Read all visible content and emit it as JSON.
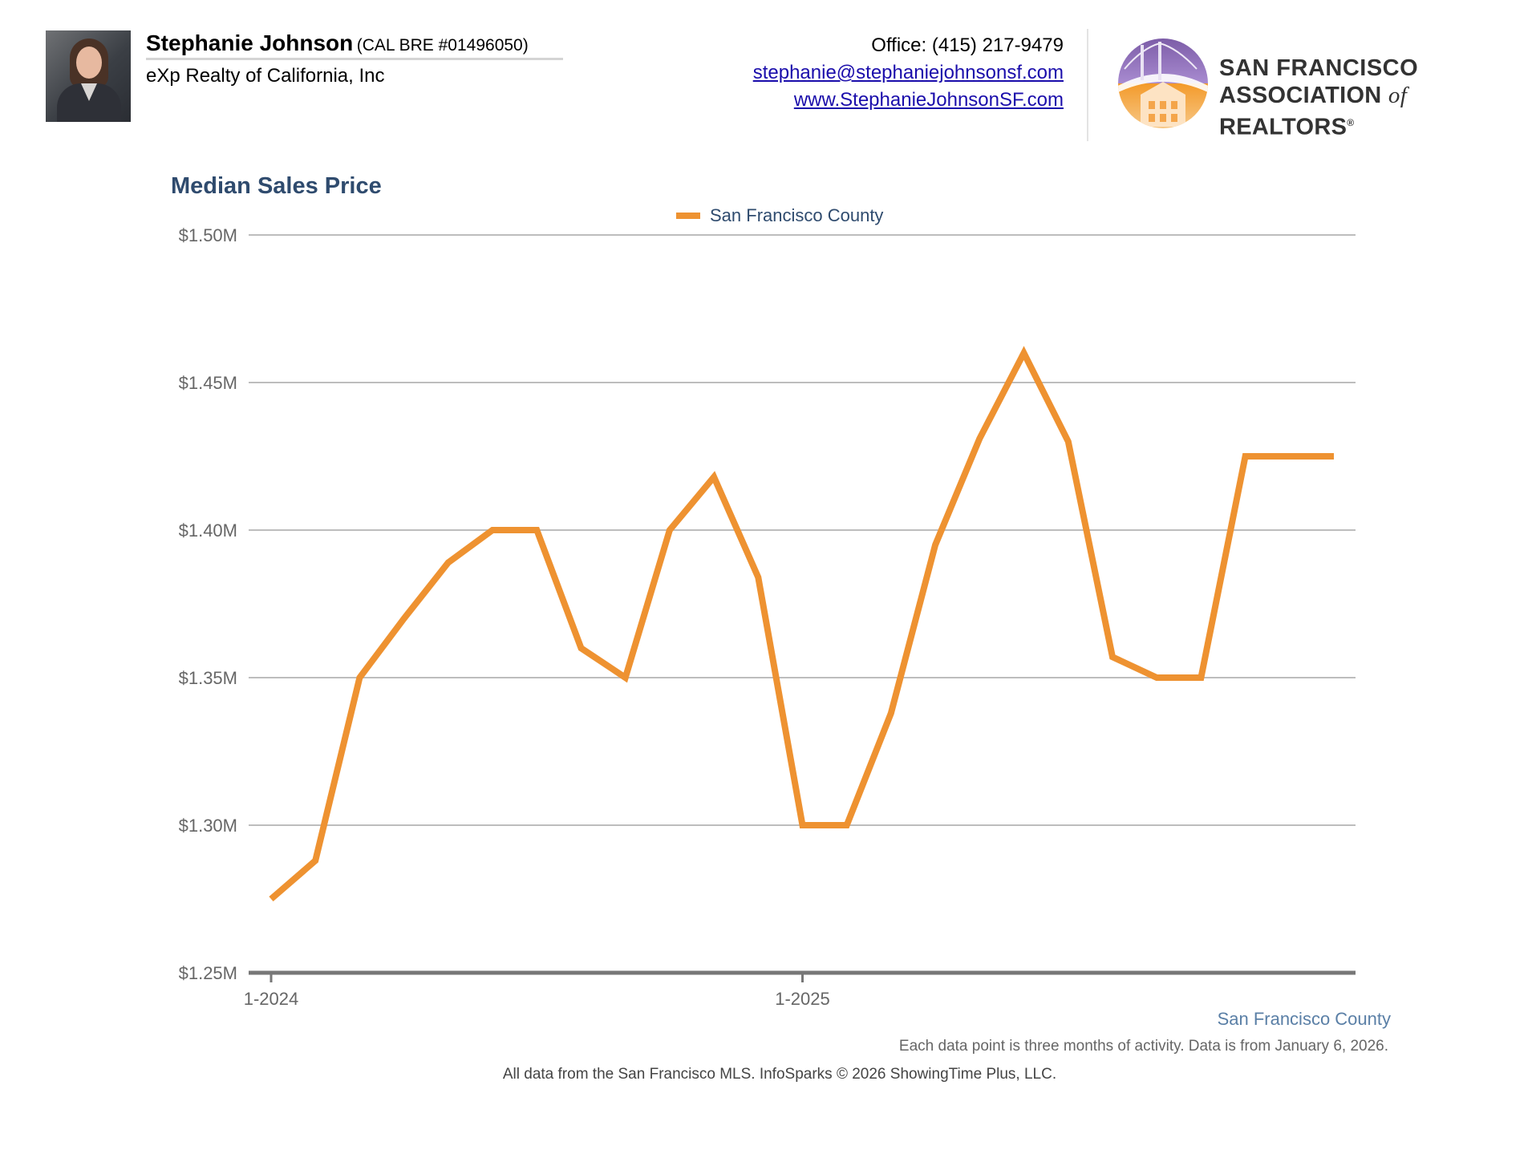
{
  "agent": {
    "name": "Stephanie Johnson",
    "license": "(CAL BRE #01496050)",
    "company": "eXp Realty of California, Inc"
  },
  "contact": {
    "office": "Office: (415) 217-9479",
    "email": "stephanie@stephaniejohnsonsf.com",
    "website": "www.StephanieJohnsonSF.com"
  },
  "association": {
    "line1": "SAN FRANCISCO",
    "line2_a": "ASSOCIATION",
    "line2_of": "of",
    "line2_b": "REALTORS",
    "mark": "®"
  },
  "chart_data": {
    "type": "line",
    "title": "Median Sales Price",
    "xlabel": "",
    "ylabel": "",
    "ylim": [
      1250000,
      1500000
    ],
    "y_ticks": [
      "$1.25M",
      "$1.30M",
      "$1.35M",
      "$1.40M",
      "$1.45M",
      "$1.50M"
    ],
    "x_ticks": [
      "1-2024",
      "1-2025"
    ],
    "x": [
      "1-2024",
      "2-2024",
      "3-2024",
      "4-2024",
      "5-2024",
      "6-2024",
      "7-2024",
      "8-2024",
      "9-2024",
      "10-2024",
      "11-2024",
      "12-2024",
      "1-2025",
      "2-2025",
      "3-2025",
      "4-2025",
      "5-2025",
      "6-2025",
      "7-2025",
      "8-2025",
      "9-2025",
      "10-2025",
      "11-2025",
      "12-2025",
      "1-2026"
    ],
    "series": [
      {
        "name": "San Francisco County",
        "color": "#ee9231",
        "values": [
          1275000,
          1288000,
          1350000,
          1370000,
          1389000,
          1400000,
          1400000,
          1360000,
          1350000,
          1400000,
          1418000,
          1384000,
          1300000,
          1300000,
          1338000,
          1395000,
          1431000,
          1460000,
          1430000,
          1357000,
          1350000,
          1350000,
          1425000,
          1425000,
          1425000
        ]
      }
    ],
    "grid": true,
    "legend": "top-center"
  },
  "footer": {
    "series_label": "San Francisco County",
    "note": "Each data point is three months of activity. Data is from January 6, 2026.",
    "source": "All data from the San Francisco MLS. InfoSparks © 2026 ShowingTime Plus, LLC."
  }
}
